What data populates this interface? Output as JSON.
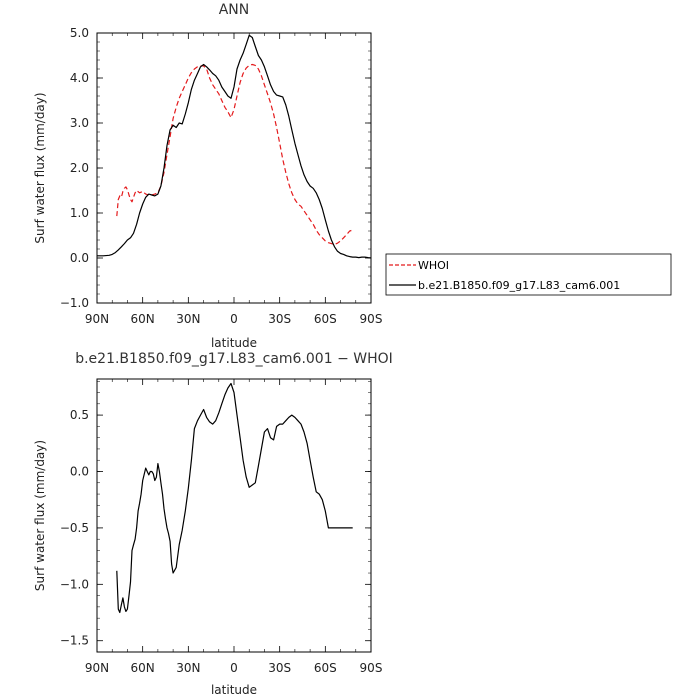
{
  "chart_data": [
    {
      "type": "line",
      "title": "ANN",
      "xlabel": "latitude",
      "ylabel": "Surf water flux (mm/day)",
      "xlim": [
        90,
        -90
      ],
      "ylim": [
        -1.0,
        5.0
      ],
      "xticks": [
        90,
        60,
        30,
        0,
        -30,
        -60,
        -90
      ],
      "xtick_labels": [
        "90N",
        "60N",
        "30N",
        "0",
        "30S",
        "60S",
        "90S"
      ],
      "yticks": [
        -1,
        0,
        1,
        2,
        3,
        4,
        5
      ],
      "ytick_labels": [
        "−1.0",
        "0.0",
        "1.0",
        "2.0",
        "3.0",
        "4.0",
        "5.0"
      ],
      "legend": {
        "placement": "outside-right"
      },
      "series": [
        {
          "name": "WHOI",
          "color": "#e41a1c",
          "style": "dashed",
          "x": [
            77,
            76,
            75,
            74,
            73,
            72,
            71,
            70,
            69,
            68,
            67,
            66,
            65,
            64,
            62,
            60,
            58,
            56,
            54,
            52,
            50,
            48,
            46,
            44,
            42,
            40,
            38,
            36,
            34,
            32,
            30,
            28,
            26,
            24,
            22,
            20,
            18,
            16,
            14,
            12,
            10,
            8,
            6,
            4,
            2,
            0,
            -2,
            -4,
            -6,
            -8,
            -10,
            -12,
            -14,
            -16,
            -18,
            -20,
            -22,
            -24,
            -26,
            -28,
            -30,
            -32,
            -34,
            -36,
            -38,
            -40,
            -42,
            -44,
            -46,
            -48,
            -50,
            -52,
            -54,
            -56,
            -58,
            -60,
            -62,
            -64,
            -66,
            -68,
            -70,
            -72,
            -74,
            -76,
            -78
          ],
          "y": [
            0.93,
            1.3,
            1.38,
            1.35,
            1.48,
            1.55,
            1.58,
            1.52,
            1.4,
            1.3,
            1.25,
            1.35,
            1.45,
            1.5,
            1.45,
            1.48,
            1.42,
            1.4,
            1.4,
            1.42,
            1.45,
            1.6,
            1.9,
            2.3,
            2.7,
            3.1,
            3.35,
            3.55,
            3.7,
            3.85,
            4.0,
            4.12,
            4.2,
            4.25,
            4.27,
            4.27,
            4.2,
            4.0,
            3.85,
            3.75,
            3.65,
            3.5,
            3.35,
            3.25,
            3.12,
            3.3,
            3.6,
            3.9,
            4.1,
            4.22,
            4.28,
            4.3,
            4.28,
            4.2,
            4.05,
            3.85,
            3.65,
            3.45,
            3.2,
            2.9,
            2.55,
            2.2,
            1.9,
            1.65,
            1.45,
            1.3,
            1.2,
            1.15,
            1.05,
            0.95,
            0.85,
            0.75,
            0.62,
            0.52,
            0.45,
            0.38,
            0.34,
            0.32,
            0.3,
            0.33,
            0.38,
            0.45,
            0.52,
            0.6,
            0.62
          ]
        },
        {
          "name": "b.e21.B1850.f09_g17.L83_cam6.001",
          "color": "#000000",
          "style": "solid",
          "x": [
            90,
            86,
            82,
            80,
            78,
            76,
            74,
            72,
            70,
            68,
            66,
            64,
            62,
            60,
            58,
            56,
            54,
            52,
            50,
            48,
            46,
            44,
            42,
            40,
            38,
            36,
            34,
            32,
            30,
            28,
            26,
            24,
            22,
            20,
            18,
            16,
            14,
            12,
            10,
            8,
            6,
            4,
            2,
            0,
            -2,
            -4,
            -6,
            -8,
            -10,
            -12,
            -14,
            -16,
            -18,
            -20,
            -22,
            -24,
            -26,
            -28,
            -30,
            -32,
            -34,
            -36,
            -38,
            -40,
            -42,
            -44,
            -46,
            -48,
            -50,
            -52,
            -54,
            -56,
            -58,
            -60,
            -62,
            -64,
            -66,
            -68,
            -70,
            -72,
            -74,
            -76,
            -78,
            -80,
            -82,
            -84,
            -86,
            -88,
            -90
          ],
          "y": [
            0.05,
            0.05,
            0.06,
            0.08,
            0.12,
            0.18,
            0.25,
            0.32,
            0.4,
            0.45,
            0.55,
            0.75,
            1.0,
            1.2,
            1.35,
            1.42,
            1.4,
            1.38,
            1.42,
            1.6,
            2.0,
            2.5,
            2.85,
            2.95,
            2.9,
            3.0,
            2.98,
            3.2,
            3.45,
            3.75,
            3.95,
            4.1,
            4.25,
            4.3,
            4.25,
            4.18,
            4.1,
            4.05,
            3.95,
            3.8,
            3.7,
            3.6,
            3.55,
            3.8,
            4.2,
            4.4,
            4.55,
            4.75,
            4.95,
            4.9,
            4.7,
            4.5,
            4.4,
            4.25,
            4.05,
            3.85,
            3.7,
            3.62,
            3.6,
            3.58,
            3.4,
            3.15,
            2.85,
            2.55,
            2.3,
            2.05,
            1.85,
            1.7,
            1.6,
            1.55,
            1.45,
            1.3,
            1.1,
            0.85,
            0.6,
            0.4,
            0.25,
            0.15,
            0.1,
            0.08,
            0.05,
            0.03,
            0.02,
            0.02,
            0.01,
            0.02,
            0.02,
            0.01,
            0.0
          ]
        }
      ]
    },
    {
      "type": "line",
      "title": "b.e21.B1850.f09_g17.L83_cam6.001 − WHOI",
      "xlabel": "latitude",
      "ylabel": "Surf water flux (mm/day)",
      "xlim": [
        90,
        -90
      ],
      "ylim": [
        -1.6,
        0.82
      ],
      "xticks": [
        90,
        60,
        30,
        0,
        -30,
        -60,
        -90
      ],
      "xtick_labels": [
        "90N",
        "60N",
        "30N",
        "0",
        "30S",
        "60S",
        "90S"
      ],
      "yticks": [
        -1.5,
        -1.0,
        -0.5,
        0.0,
        0.5
      ],
      "ytick_labels": [
        "−1.5",
        "−1.0",
        "−0.5",
        "0.0",
        "0.5"
      ],
      "series": [
        {
          "color": "#000000",
          "style": "solid",
          "x": [
            77,
            76,
            75,
            74,
            73,
            72,
            71,
            70,
            69,
            68,
            67,
            66,
            65,
            64,
            63,
            62,
            61,
            60,
            58,
            57,
            56,
            55,
            54,
            53,
            52,
            51,
            50,
            49,
            48,
            47,
            46,
            45,
            44,
            43,
            42,
            41,
            40,
            38,
            36,
            34,
            32,
            30,
            28,
            26,
            24,
            22,
            20,
            18,
            16,
            14,
            12,
            10,
            8,
            6,
            4,
            2,
            0,
            -2,
            -4,
            -6,
            -8,
            -10,
            -12,
            -14,
            -16,
            -18,
            -20,
            -22,
            -24,
            -26,
            -28,
            -30,
            -32,
            -34,
            -36,
            -38,
            -40,
            -42,
            -44,
            -46,
            -48,
            -50,
            -52,
            -54,
            -56,
            -58,
            -60,
            -62,
            -64,
            -66,
            -68,
            -70,
            -72,
            -74,
            -76,
            -78
          ],
          "y": [
            -0.88,
            -1.22,
            -1.25,
            -1.18,
            -1.12,
            -1.2,
            -1.24,
            -1.22,
            -1.1,
            -0.98,
            -0.7,
            -0.65,
            -0.6,
            -0.5,
            -0.35,
            -0.28,
            -0.2,
            -0.08,
            0.03,
            0.0,
            -0.03,
            0.0,
            0.0,
            -0.02,
            -0.08,
            -0.05,
            0.07,
            0.0,
            -0.1,
            -0.2,
            -0.33,
            -0.42,
            -0.5,
            -0.55,
            -0.62,
            -0.82,
            -0.9,
            -0.85,
            -0.65,
            -0.52,
            -0.35,
            -0.15,
            0.1,
            0.38,
            0.45,
            0.5,
            0.55,
            0.48,
            0.44,
            0.42,
            0.45,
            0.52,
            0.6,
            0.68,
            0.74,
            0.78,
            0.7,
            0.5,
            0.3,
            0.1,
            -0.05,
            -0.14,
            -0.12,
            -0.1,
            0.05,
            0.2,
            0.35,
            0.38,
            0.3,
            0.28,
            0.4,
            0.42,
            0.42,
            0.45,
            0.48,
            0.5,
            0.48,
            0.45,
            0.42,
            0.35,
            0.25,
            0.1,
            -0.05,
            -0.18,
            -0.2,
            -0.25,
            -0.35,
            -0.5,
            -0.5,
            -0.5,
            -0.5,
            -0.5,
            -0.5,
            -0.5,
            -0.5,
            -0.5
          ]
        }
      ]
    }
  ]
}
